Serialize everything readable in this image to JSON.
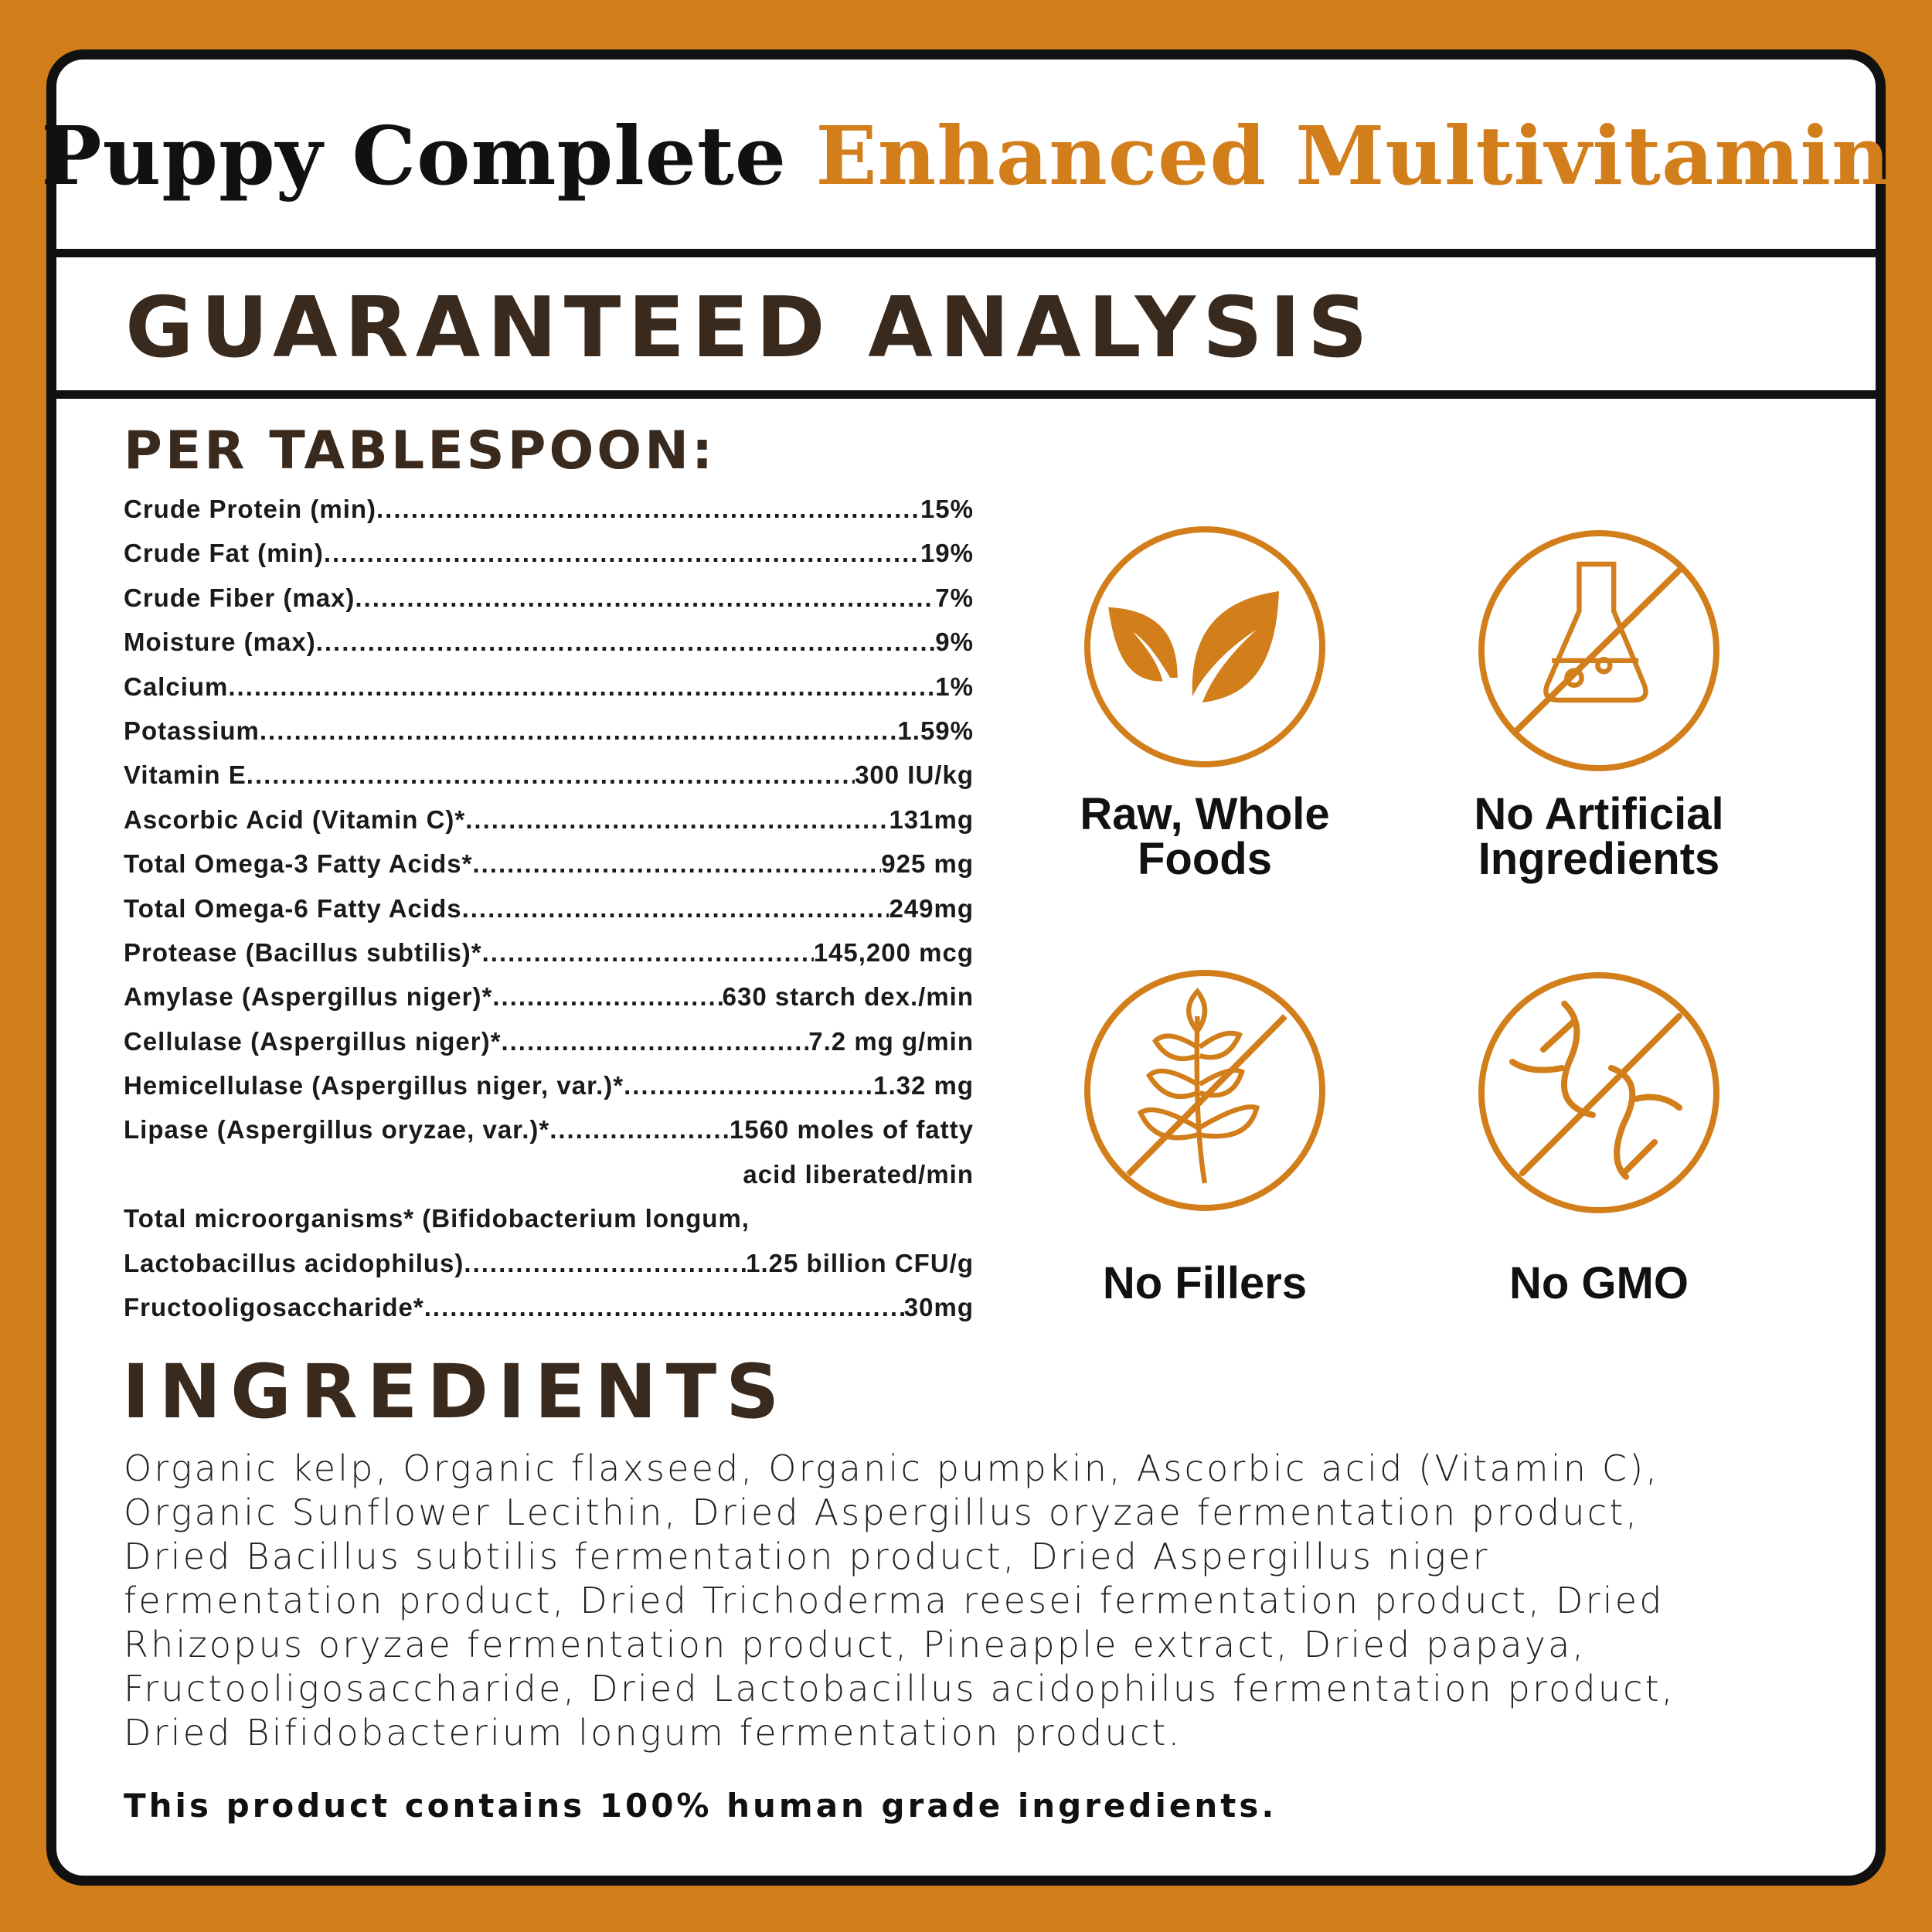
{
  "title": {
    "part1": "Puppy Complete",
    "part2": "Enhanced Multivitamin"
  },
  "section_heading": "GUARANTEED ANALYSIS",
  "per_label": "PER TABLESPOON:",
  "analysis": [
    {
      "label": "Crude Protein (min)",
      "value": "15%"
    },
    {
      "label": "Crude Fat (min)",
      "value": "19%"
    },
    {
      "label": "Crude Fiber (max)",
      "value": "7%"
    },
    {
      "label": "Moisture (max)",
      "value": "9%"
    },
    {
      "label": "Calcium",
      "value": "1%"
    },
    {
      "label": "Potassium",
      "value": "1.59%"
    },
    {
      "label": "Vitamin E",
      "value": "300 IU/kg"
    },
    {
      "label": "Ascorbic Acid (Vitamin C)*",
      "value": "131mg"
    },
    {
      "label": "Total Omega-3 Fatty Acids*",
      "value": "925 mg"
    },
    {
      "label": "Total Omega-6 Fatty Acids",
      "value": "249mg"
    },
    {
      "label": "Protease (Bacillus subtilis)*",
      "value": "145,200 mcg"
    },
    {
      "label": "Amylase (Aspergillus niger)*",
      "value": "630 starch dex./min"
    },
    {
      "label": "Cellulase (Aspergillus niger)*",
      "value": "7.2 mg g/min"
    },
    {
      "label": "Hemicellulase (Aspergillus niger, var.)*",
      "value": "1.32 mg"
    },
    {
      "label": "Lipase (Aspergillus oryzae, var.)*",
      "value": "1560 moles of fatty",
      "value_cont": "acid liberated/min"
    },
    {
      "label_pre": "Total microorganisms* (Bifidobacterium longum,",
      "label": "Lactobacillus acidophilus)",
      "value": "1.25 billion CFU/g"
    },
    {
      "label": "Fructooligosaccharide*",
      "value": "30mg"
    }
  ],
  "badges": [
    {
      "icon": "leaf-icon",
      "line1": "Raw, Whole",
      "line2": "Foods"
    },
    {
      "icon": "no-artificial-flask-icon",
      "line1": "No Artificial",
      "line2": "Ingredients"
    },
    {
      "icon": "no-fillers-wheat-icon",
      "line1": "No Fillers"
    },
    {
      "icon": "no-gmo-dna-icon",
      "line1": "No GMO"
    }
  ],
  "ingredients": {
    "heading": "INGREDIENTS",
    "lines": [
      "Organic kelp, Organic flaxseed, Organic pumpkin, Ascorbic acid (Vitamin C),",
      "Organic Sunflower Lecithin, Dried Aspergillus oryzae fermentation product,",
      "Dried Bacillus subtilis fermentation product, Dried Aspergillus niger",
      "fermentation product, Dried Trichoderma reesei fermentation product, Dried",
      "Rhizopus oryzae fermentation product, Pineapple extract, Dried papaya,",
      "Fructooligosaccharide, Dried Lactobacillus acidophilus fermentation product,",
      "Dried Bifidobacterium longum fermentation product."
    ]
  },
  "footer_note": "This product contains 100% human grade ingredients.",
  "colors": {
    "accent": "#D17E1B",
    "heading": "#3a2a1e",
    "border": "#111111"
  }
}
